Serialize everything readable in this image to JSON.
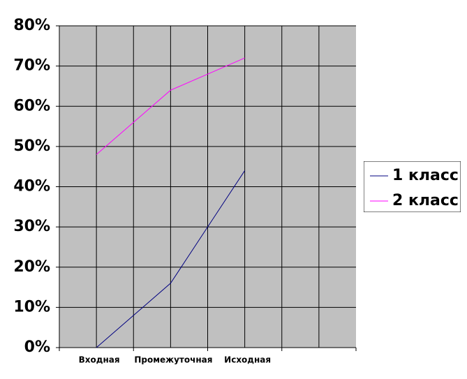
{
  "chart_data": {
    "type": "line",
    "categories": [
      "Входная",
      null,
      "Промежуточная",
      null,
      "Исходная",
      null,
      null
    ],
    "series": [
      {
        "name": "1 класс",
        "color": "#000080",
        "values": [
          0,
          8,
          16,
          30,
          44,
          null,
          null
        ]
      },
      {
        "name": "2 класс",
        "color": "#ff00ff",
        "values": [
          48,
          56,
          64,
          68,
          72,
          null,
          null
        ]
      }
    ],
    "ylim": [
      0,
      80
    ],
    "yticks": [
      {
        "value": 0,
        "label": "0%"
      },
      {
        "value": 10,
        "label": "10%"
      },
      {
        "value": 20,
        "label": "20%"
      },
      {
        "value": 30,
        "label": "30%"
      },
      {
        "value": 40,
        "label": "40%"
      },
      {
        "value": 50,
        "label": "50%"
      },
      {
        "value": 60,
        "label": "60%"
      },
      {
        "value": 70,
        "label": "70%"
      },
      {
        "value": 80,
        "label": "80%"
      }
    ],
    "grid": true,
    "background": "#c0c0c0",
    "legend": "right"
  }
}
